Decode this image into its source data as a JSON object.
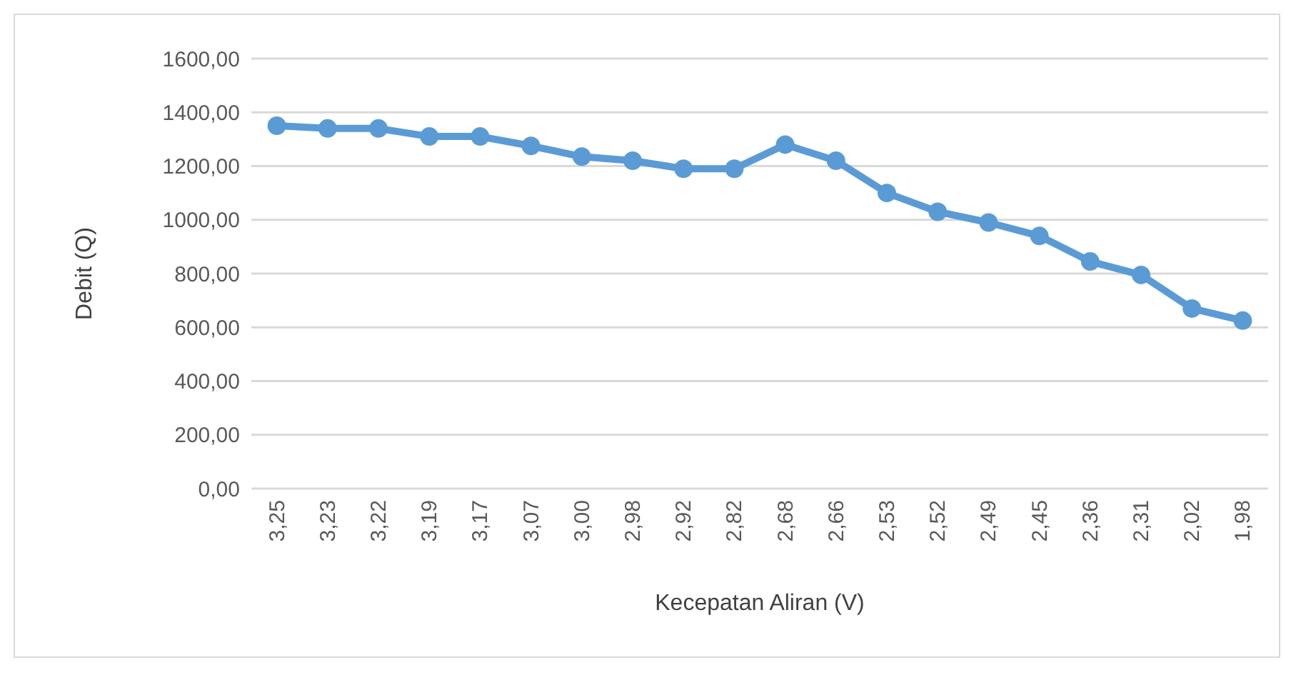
{
  "chart_data": {
    "type": "line",
    "xlabel": "Kecepatan Aliran (V)",
    "ylabel": "Debit (Q)",
    "categories": [
      "3,25",
      "3,23",
      "3,22",
      "3,19",
      "3,17",
      "3,07",
      "3,00",
      "2,98",
      "2,92",
      "2,82",
      "2,68",
      "2,66",
      "2,53",
      "2,52",
      "2,49",
      "2,45",
      "2,36",
      "2,31",
      "2,02",
      "1,98"
    ],
    "series": [
      {
        "color": "#5b9bd5",
        "values": [
          1350,
          1340,
          1340,
          1310,
          1310,
          1275,
          1235,
          1220,
          1190,
          1190,
          1280,
          1220,
          1100,
          1030,
          990,
          940,
          845,
          795,
          670,
          625
        ]
      }
    ],
    "ylim": [
      0,
      1600
    ],
    "yticks": [
      {
        "value": 0,
        "label": "0,00"
      },
      {
        "value": 200,
        "label": "200,00"
      },
      {
        "value": 400,
        "label": "400,00"
      },
      {
        "value": 600,
        "label": "600,00"
      },
      {
        "value": 800,
        "label": "800,00"
      },
      {
        "value": 1000,
        "label": "1000,00"
      },
      {
        "value": 1200,
        "label": "1200,00"
      },
      {
        "value": 1400,
        "label": "1400,00"
      },
      {
        "value": 1600,
        "label": "1600,00"
      }
    ],
    "grid": "y",
    "marker": "circle",
    "line_style": "solid"
  }
}
